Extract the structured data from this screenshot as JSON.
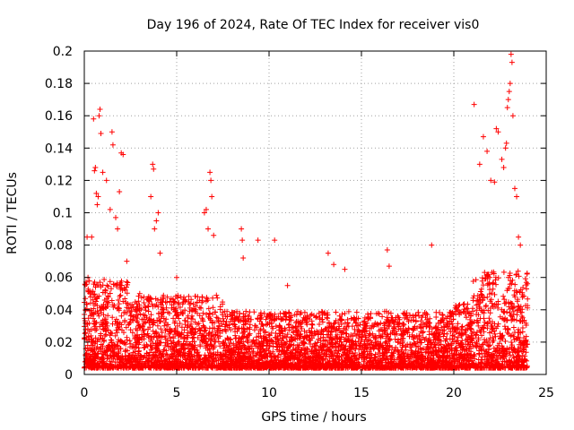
{
  "chart_data": {
    "type": "scatter",
    "title": "Day 196 of 2024, Rate Of TEC Index for receiver vis0",
    "xlabel": "GPS time / hours",
    "ylabel": "ROTI / TECUs",
    "xlim": [
      0,
      25
    ],
    "ylim": [
      0,
      0.2
    ],
    "xticks": [
      0,
      5,
      10,
      15,
      20,
      25
    ],
    "yticks": [
      0,
      0.02,
      0.04,
      0.06,
      0.08,
      0.1,
      0.12,
      0.14,
      0.16,
      0.18,
      0.2
    ],
    "xtick_labels": [
      "0",
      "5",
      "10",
      "15",
      "20",
      "25"
    ],
    "ytick_labels": [
      "0",
      "0.02",
      "0.04",
      "0.06",
      "0.08",
      "0.1",
      "0.12",
      "0.14",
      "0.16",
      "0.18",
      "0.2"
    ],
    "grid": true,
    "marker": "plus",
    "color": "#ff0000",
    "x_data_range": [
      0,
      24
    ],
    "series": [
      {
        "name": "ROTI",
        "points": [
          [
            0.15,
            0.085
          ],
          [
            0.2,
            0.06
          ],
          [
            0.3,
            0.05
          ],
          [
            0.4,
            0.085
          ],
          [
            0.5,
            0.158
          ],
          [
            0.55,
            0.126
          ],
          [
            0.6,
            0.128
          ],
          [
            0.65,
            0.112
          ],
          [
            0.7,
            0.105
          ],
          [
            0.75,
            0.11
          ],
          [
            0.8,
            0.16
          ],
          [
            0.85,
            0.164
          ],
          [
            0.9,
            0.149
          ],
          [
            1.0,
            0.125
          ],
          [
            1.2,
            0.12
          ],
          [
            1.4,
            0.102
          ],
          [
            1.5,
            0.15
          ],
          [
            1.55,
            0.142
          ],
          [
            1.7,
            0.097
          ],
          [
            1.8,
            0.09
          ],
          [
            1.9,
            0.113
          ],
          [
            2.0,
            0.137
          ],
          [
            2.1,
            0.136
          ],
          [
            2.3,
            0.07
          ],
          [
            3.0,
            0.05
          ],
          [
            3.6,
            0.11
          ],
          [
            3.7,
            0.13
          ],
          [
            3.75,
            0.127
          ],
          [
            3.8,
            0.09
          ],
          [
            3.9,
            0.095
          ],
          [
            4.0,
            0.1
          ],
          [
            4.1,
            0.075
          ],
          [
            5.0,
            0.06
          ],
          [
            6.5,
            0.1
          ],
          [
            6.6,
            0.102
          ],
          [
            6.7,
            0.09
          ],
          [
            6.8,
            0.125
          ],
          [
            6.85,
            0.12
          ],
          [
            6.9,
            0.11
          ],
          [
            7.0,
            0.086
          ],
          [
            8.5,
            0.09
          ],
          [
            8.55,
            0.083
          ],
          [
            8.6,
            0.072
          ],
          [
            9.4,
            0.083
          ],
          [
            10.3,
            0.083
          ],
          [
            11.0,
            0.055
          ],
          [
            13.2,
            0.075
          ],
          [
            13.5,
            0.068
          ],
          [
            14.1,
            0.065
          ],
          [
            16.4,
            0.077
          ],
          [
            16.5,
            0.067
          ],
          [
            18.8,
            0.08
          ],
          [
            21.1,
            0.167
          ],
          [
            21.4,
            0.13
          ],
          [
            21.6,
            0.147
          ],
          [
            21.8,
            0.138
          ],
          [
            22.0,
            0.12
          ],
          [
            22.2,
            0.119
          ],
          [
            22.3,
            0.152
          ],
          [
            22.4,
            0.15
          ],
          [
            22.6,
            0.133
          ],
          [
            22.7,
            0.128
          ],
          [
            22.8,
            0.14
          ],
          [
            22.85,
            0.143
          ],
          [
            22.9,
            0.165
          ],
          [
            22.95,
            0.17
          ],
          [
            23.0,
            0.175
          ],
          [
            23.05,
            0.18
          ],
          [
            23.1,
            0.198
          ],
          [
            23.15,
            0.193
          ],
          [
            23.2,
            0.16
          ],
          [
            23.3,
            0.115
          ],
          [
            23.4,
            0.11
          ],
          [
            23.5,
            0.085
          ],
          [
            23.6,
            0.08
          ]
        ]
      }
    ]
  }
}
